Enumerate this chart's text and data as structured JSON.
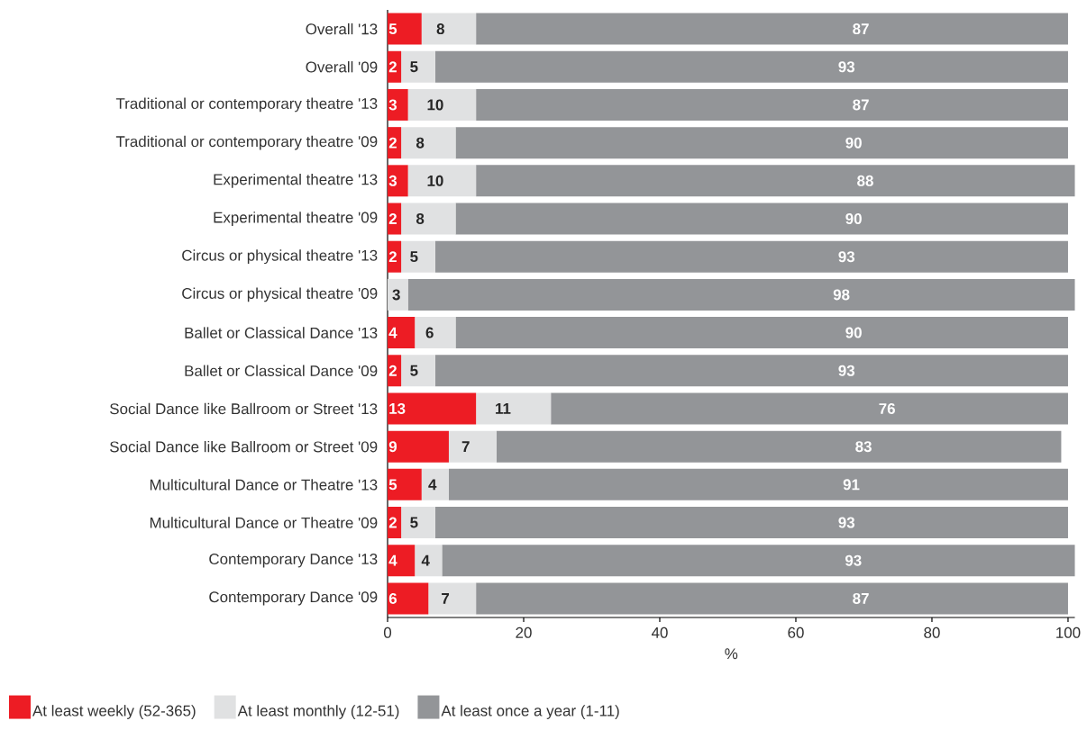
{
  "chart_data": {
    "type": "bar",
    "orientation": "horizontal",
    "stacked": true,
    "xlabel": "%",
    "categories": [
      "Overall '13",
      "Overall '09",
      "Traditional or contemporary theatre '13",
      "Traditional or contemporary theatre '09",
      "Experimental theatre '13",
      "Experimental theatre '09",
      "Circus or physical theatre '13",
      "Circus or physical theatre '09",
      "Ballet or Classical Dance '13",
      "Ballet or Classical Dance '09",
      "Social Dance like Ballroom or Street '13",
      "Social Dance like Ballroom or Street '09",
      "Multicultural Dance or Theatre '13",
      "Multicultural Dance or Theatre '09",
      "Contemporary Dance '13",
      "Contemporary Dance '09"
    ],
    "series": [
      {
        "name": "At least weekly (52-365)",
        "color": "#ed1c24",
        "values": [
          5,
          2,
          3,
          2,
          3,
          2,
          2,
          0,
          4,
          2,
          13,
          9,
          5,
          2,
          4,
          6
        ],
        "value_labels": [
          "5",
          "2",
          "3",
          "2",
          "3",
          "2",
          "2",
          null,
          "4",
          "2",
          "13",
          "9",
          "5",
          "2",
          "4",
          "6"
        ]
      },
      {
        "name": "At least monthly (12-51)",
        "color": "#e0e1e2",
        "values": [
          8,
          5,
          10,
          8,
          10,
          8,
          5,
          3,
          6,
          5,
          11,
          7,
          4,
          5,
          4,
          7
        ],
        "value_labels": [
          "8",
          "5",
          "10",
          "8",
          "10",
          "8",
          "5",
          "3",
          "6",
          "5",
          "11",
          "7",
          "4",
          "5",
          "4",
          "7"
        ]
      },
      {
        "name": "At least once a year (1-11)",
        "color": "#939598",
        "values": [
          87,
          93,
          87,
          90,
          88,
          90,
          93,
          98,
          90,
          93,
          76,
          83,
          91,
          93,
          93,
          87
        ],
        "value_labels": [
          "87",
          "93",
          "87",
          "90",
          "88",
          "90",
          "93",
          "98",
          "90",
          "93",
          "76",
          "83",
          "91",
          "93",
          "93",
          "87"
        ]
      }
    ],
    "xlim": [
      0,
      101
    ],
    "xticks": [
      0,
      20,
      40,
      60,
      80,
      100
    ],
    "legend": "bottom left"
  }
}
